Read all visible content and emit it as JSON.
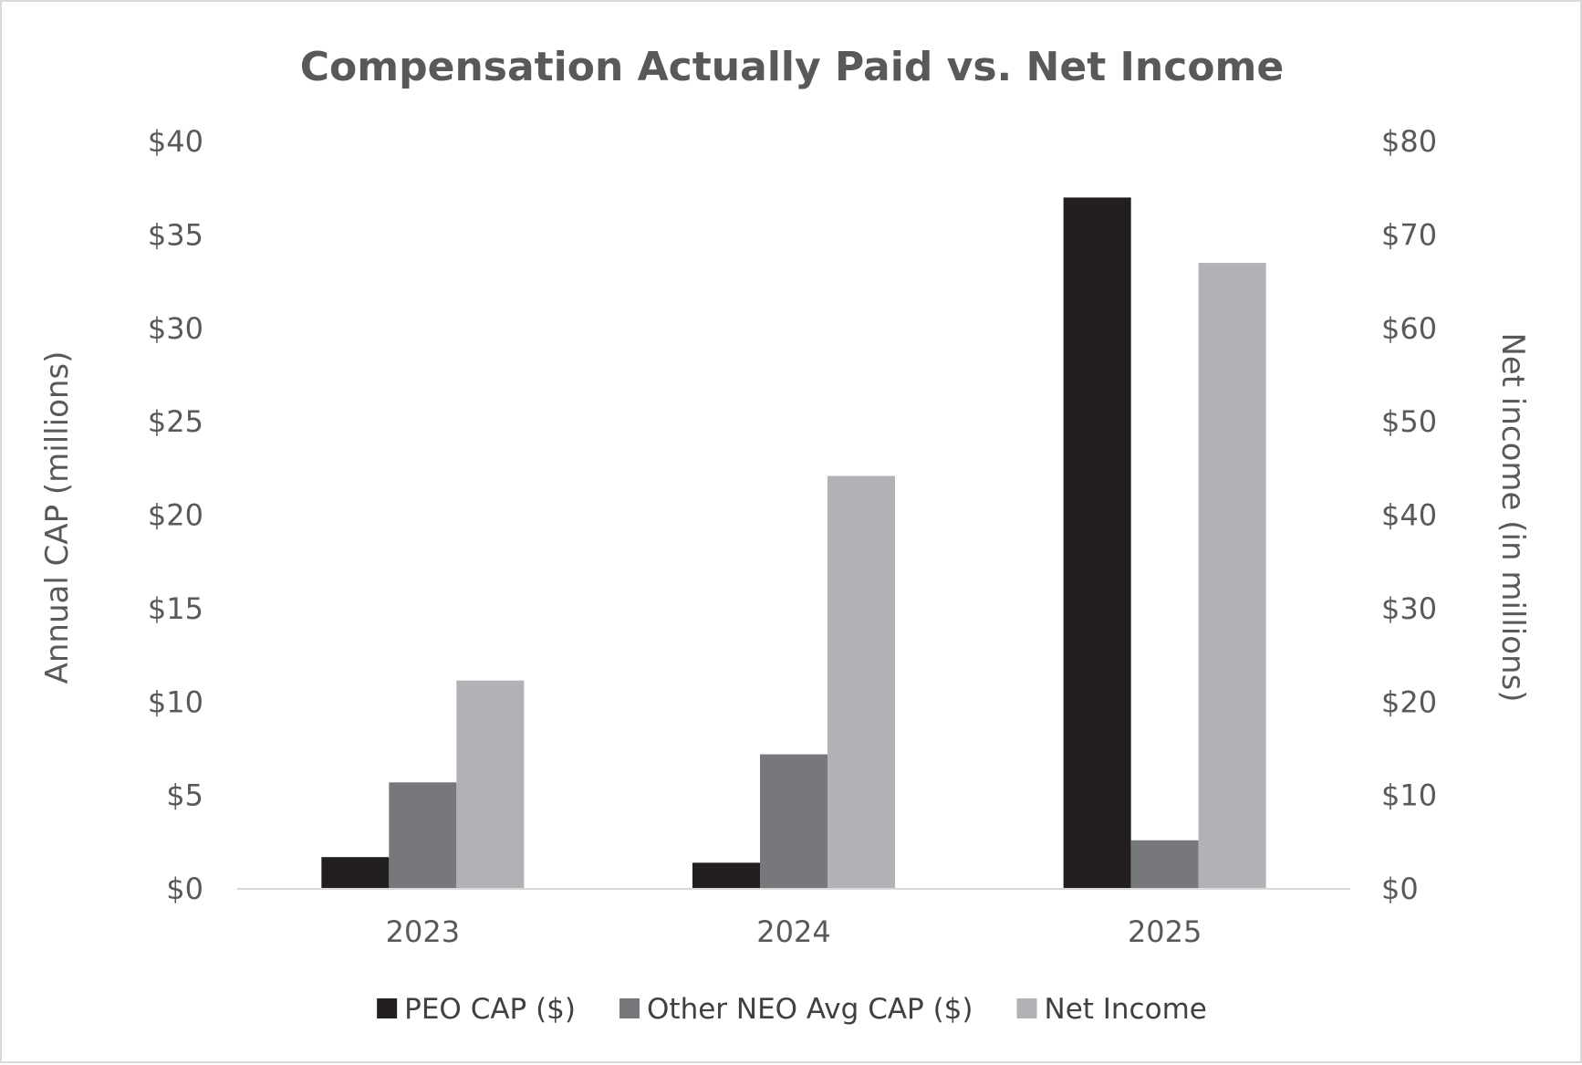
{
  "chart_data": {
    "type": "bar",
    "title": "Compensation Actually Paid vs. Net Income",
    "categories": [
      "2023",
      "2024",
      "2025"
    ],
    "series": [
      {
        "name": "PEO CAP ($)",
        "axis": "left",
        "color": "#231f20",
        "values": [
          1.7,
          1.4,
          37.0
        ]
      },
      {
        "name": "Other NEO Avg CAP ($)",
        "axis": "left",
        "color": "#77787b",
        "values": [
          5.7,
          7.2,
          2.6
        ]
      },
      {
        "name": "Net Income",
        "axis": "right",
        "color": "#b1b2b5",
        "values": [
          22.3,
          44.2,
          67.0
        ]
      }
    ],
    "ylabel": "Annual CAP (millions)",
    "y2label": "Net income (in millions)",
    "ylim": [
      0,
      40
    ],
    "y2lim": [
      0,
      80
    ],
    "yticks": [
      "$0",
      "$5",
      "$10",
      "$15",
      "$20",
      "$25",
      "$30",
      "$35",
      "$40"
    ],
    "y2ticks": [
      "$0",
      "$10",
      "$20",
      "$30",
      "$40",
      "$50",
      "$60",
      "$70",
      "$80"
    ],
    "grid": false,
    "legend": "bottom"
  }
}
